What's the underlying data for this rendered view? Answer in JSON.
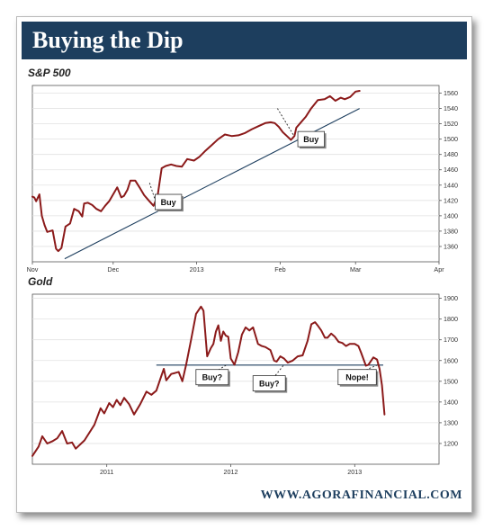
{
  "title": "Buying the Dip",
  "footer": "WWW.AGORAFINANCIAL.COM",
  "colors": {
    "banner": "#1d3e5e",
    "series": "#8b1a1a",
    "trendline": "#1d3e5e"
  },
  "chart_data": [
    {
      "type": "line",
      "title": "S&P 500",
      "x_tick_labels": [
        "Nov",
        "Dec",
        "2013",
        "Feb",
        "Mar",
        "Apr"
      ],
      "y_ticks": [
        1360,
        1380,
        1400,
        1420,
        1440,
        1460,
        1480,
        1500,
        1520,
        1540,
        1560
      ],
      "ylim": [
        1340,
        1570
      ],
      "grid": "horizontal",
      "series": [
        {
          "values": [
            [
              0.0,
              1425
            ],
            [
              0.7,
              1424
            ],
            [
              1.4,
              1419
            ],
            [
              2.6,
              1428
            ],
            [
              3.5,
              1400
            ],
            [
              4.5,
              1388
            ],
            [
              5.5,
              1379
            ],
            [
              7.5,
              1381
            ],
            [
              8.8,
              1357
            ],
            [
              9.6,
              1354
            ],
            [
              10.8,
              1358
            ],
            [
              12.3,
              1386
            ],
            [
              14.0,
              1390
            ],
            [
              15.5,
              1409
            ],
            [
              17.2,
              1406
            ],
            [
              18.5,
              1399
            ],
            [
              19.2,
              1416
            ],
            [
              20.6,
              1417
            ],
            [
              22.2,
              1414
            ],
            [
              23.8,
              1409
            ],
            [
              25.5,
              1406
            ],
            [
              27.0,
              1413
            ],
            [
              28.5,
              1419
            ],
            [
              30.0,
              1428
            ],
            [
              31.5,
              1437
            ],
            [
              33.0,
              1424
            ],
            [
              34.0,
              1426
            ],
            [
              35.3,
              1434
            ],
            [
              36.4,
              1446
            ],
            [
              38.2,
              1446
            ],
            [
              39.8,
              1437
            ],
            [
              41.5,
              1427
            ],
            [
              43.2,
              1420
            ],
            [
              45.0,
              1413
            ],
            [
              46.5,
              1426
            ],
            [
              48.0,
              1462
            ],
            [
              49.5,
              1465
            ],
            [
              51.5,
              1467
            ],
            [
              53.5,
              1465
            ],
            [
              55.5,
              1464
            ],
            [
              57.5,
              1474
            ],
            [
              60.0,
              1472
            ],
            [
              62.0,
              1477
            ],
            [
              64.0,
              1484
            ],
            [
              66.5,
              1492
            ],
            [
              69.0,
              1500
            ],
            [
              71.5,
              1506
            ],
            [
              74.0,
              1504
            ],
            [
              76.5,
              1505
            ],
            [
              79.0,
              1508
            ],
            [
              81.5,
              1513
            ],
            [
              84.0,
              1517
            ],
            [
              86.5,
              1521
            ],
            [
              88.5,
              1522
            ],
            [
              90.0,
              1521
            ],
            [
              91.5,
              1516
            ],
            [
              93.0,
              1509
            ],
            [
              94.5,
              1504
            ],
            [
              96.0,
              1499
            ],
            [
              97.3,
              1504
            ],
            [
              98.0,
              1515
            ],
            [
              99.5,
              1521
            ],
            [
              101.5,
              1529
            ],
            [
              103.5,
              1540
            ],
            [
              106.0,
              1551
            ],
            [
              108.5,
              1552
            ],
            [
              110.5,
              1556
            ],
            [
              112.5,
              1550
            ],
            [
              114.5,
              1554
            ],
            [
              116.0,
              1552
            ],
            [
              118.0,
              1555
            ],
            [
              120.0,
              1562
            ],
            [
              121.5,
              1563
            ]
          ]
        },
        {
          "name": "trendline",
          "values": [
            [
              12.0,
              1344
            ],
            [
              121.5,
              1540
            ]
          ]
        }
      ],
      "annotations": [
        {
          "text": "Buy",
          "x": 50.5,
          "y": 1418,
          "from": [
            43.5,
            1443
          ],
          "to": [
            46.0,
            1416
          ]
        },
        {
          "text": "Buy",
          "x": 103.5,
          "y": 1500,
          "from": [
            91.0,
            1540
          ],
          "to": [
            97.0,
            1505
          ]
        }
      ]
    },
    {
      "type": "line",
      "title": "Gold",
      "x_tick_labels": [
        "2011",
        "2012",
        "2013"
      ],
      "y_ticks": [
        1200,
        1300,
        1400,
        1500,
        1600,
        1700,
        1800,
        1900
      ],
      "ylim": [
        1100,
        1920
      ],
      "grid": "horizontal",
      "series": [
        {
          "values": [
            [
              2010.4,
              1140
            ],
            [
              2010.45,
              1185
            ],
            [
              2010.48,
              1235
            ],
            [
              2010.52,
              1200
            ],
            [
              2010.56,
              1210
            ],
            [
              2010.6,
              1225
            ],
            [
              2010.64,
              1260
            ],
            [
              2010.68,
              1200
            ],
            [
              2010.72,
              1205
            ],
            [
              2010.75,
              1175
            ],
            [
              2010.82,
              1215
            ],
            [
              2010.9,
              1290
            ],
            [
              2010.95,
              1370
            ],
            [
              2010.98,
              1345
            ],
            [
              2011.02,
              1395
            ],
            [
              2011.05,
              1375
            ],
            [
              2011.08,
              1410
            ],
            [
              2011.11,
              1385
            ],
            [
              2011.14,
              1420
            ],
            [
              2011.18,
              1390
            ],
            [
              2011.22,
              1340
            ],
            [
              2011.27,
              1390
            ],
            [
              2011.32,
              1450
            ],
            [
              2011.36,
              1435
            ],
            [
              2011.4,
              1455
            ],
            [
              2011.44,
              1525
            ],
            [
              2011.46,
              1560
            ],
            [
              2011.48,
              1505
            ],
            [
              2011.52,
              1535
            ],
            [
              2011.55,
              1540
            ],
            [
              2011.58,
              1545
            ],
            [
              2011.61,
              1500
            ],
            [
              2011.64,
              1580
            ],
            [
              2011.68,
              1700
            ],
            [
              2011.72,
              1825
            ],
            [
              2011.76,
              1860
            ],
            [
              2011.78,
              1840
            ],
            [
              2011.81,
              1620
            ],
            [
              2011.84,
              1660
            ],
            [
              2011.86,
              1680
            ],
            [
              2011.88,
              1740
            ],
            [
              2011.9,
              1770
            ],
            [
              2011.92,
              1695
            ],
            [
              2011.94,
              1740
            ],
            [
              2011.96,
              1720
            ],
            [
              2011.98,
              1715
            ],
            [
              2012.0,
              1610
            ],
            [
              2012.03,
              1580
            ],
            [
              2012.06,
              1640
            ],
            [
              2012.09,
              1725
            ],
            [
              2012.12,
              1760
            ],
            [
              2012.15,
              1745
            ],
            [
              2012.18,
              1760
            ],
            [
              2012.22,
              1680
            ],
            [
              2012.25,
              1670
            ],
            [
              2012.28,
              1665
            ],
            [
              2012.32,
              1650
            ],
            [
              2012.35,
              1600
            ],
            [
              2012.37,
              1595
            ],
            [
              2012.4,
              1620
            ],
            [
              2012.43,
              1610
            ],
            [
              2012.46,
              1590
            ],
            [
              2012.5,
              1600
            ],
            [
              2012.54,
              1620
            ],
            [
              2012.58,
              1625
            ],
            [
              2012.62,
              1695
            ],
            [
              2012.65,
              1775
            ],
            [
              2012.68,
              1785
            ],
            [
              2012.7,
              1770
            ],
            [
              2012.73,
              1745
            ],
            [
              2012.76,
              1710
            ],
            [
              2012.78,
              1710
            ],
            [
              2012.81,
              1730
            ],
            [
              2012.84,
              1715
            ],
            [
              2012.87,
              1690
            ],
            [
              2012.9,
              1685
            ],
            [
              2012.93,
              1670
            ],
            [
              2012.96,
              1680
            ],
            [
              2013.0,
              1680
            ],
            [
              2013.03,
              1670
            ],
            [
              2013.05,
              1640
            ],
            [
              2013.09,
              1575
            ],
            [
              2013.11,
              1580
            ],
            [
              2013.15,
              1615
            ],
            [
              2013.18,
              1605
            ],
            [
              2013.2,
              1560
            ],
            [
              2013.22,
              1480
            ],
            [
              2013.24,
              1340
            ]
          ]
        }
      ],
      "reference_line": {
        "y": 1578,
        "from_x": 2011.4,
        "to_x": 2013.23
      },
      "annotations": [
        {
          "text": "Buy?",
          "x": 2011.85,
          "y": 1520,
          "from": [
            2011.9,
            1555
          ],
          "to": [
            2011.97,
            1580
          ]
        },
        {
          "text": "Buy?",
          "x": 2012.31,
          "y": 1490,
          "from": [
            2012.36,
            1528
          ],
          "to": [
            2012.43,
            1580
          ]
        },
        {
          "text": "Nope!",
          "x": 2013.02,
          "y": 1520,
          "from": [
            2013.09,
            1555
          ],
          "to": [
            2013.19,
            1580
          ]
        }
      ]
    }
  ]
}
